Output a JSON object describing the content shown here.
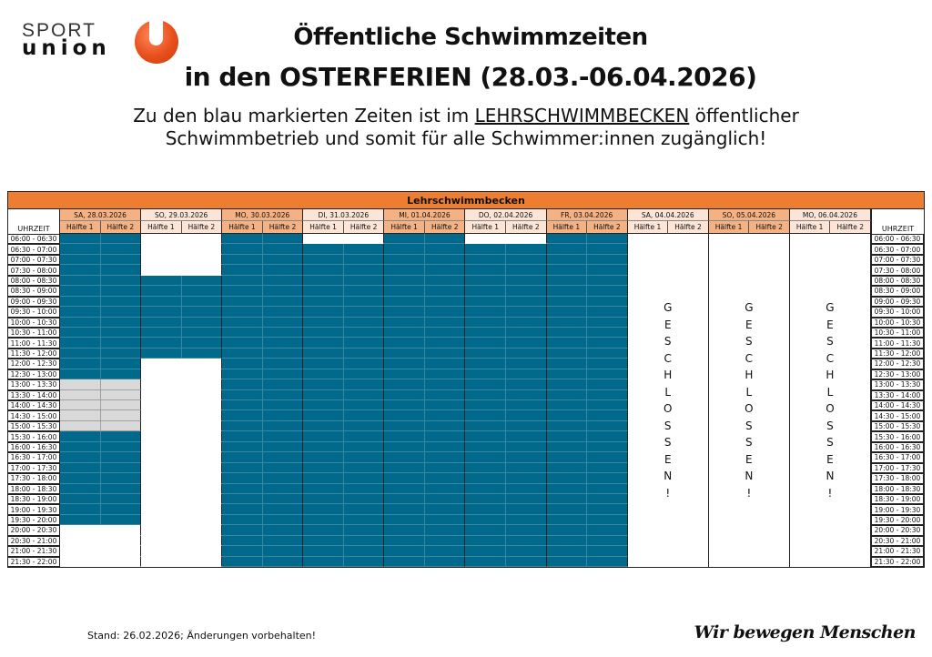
{
  "logo": {
    "line1": "SPORT",
    "line2": "union",
    "brand_color": "#e84e1b"
  },
  "title": {
    "line1": "Öffentliche Schwimmzeiten",
    "line2": "in den OSTERFERIEN (28.03.-06.04.2026)"
  },
  "subtitle": {
    "line1_before": "Zu den blau markierten Zeiten ist im ",
    "line1_underlined": "LEHRSCHWIMMBECKEN",
    "line1_after": " öffentlicher",
    "line2": "Schwimmbetrieb und somit für alle Schwimmer:innen zugänglich!"
  },
  "table": {
    "header": "Lehrschwimmbecken",
    "time_header": "UHRZEIT",
    "half_labels": [
      "Hälfte 1",
      "Hälfte 2"
    ],
    "closed_text": "GESCHLOSSEN!",
    "colors": {
      "open": "#00698c",
      "reserved": "#d9d9d9",
      "header": "#ed7d31",
      "day_dark": "#f4b183",
      "day_light": "#fce4d6"
    },
    "times": [
      "06:00 - 06:30",
      "06:30 - 07:00",
      "07:00 - 07:30",
      "07:30 - 08:00",
      "08:00 - 08:30",
      "08:30 - 09:00",
      "09:00 - 09:30",
      "09:30 - 10:00",
      "10:00 - 10:30",
      "10:30 - 11:00",
      "11:00 - 11:30",
      "11:30 - 12:00",
      "12:00 - 12:30",
      "12:30 - 13:00",
      "13:00 - 13:30",
      "13:30 - 14:00",
      "14:00 - 14:30",
      "14:30 - 15:00",
      "15:00 - 15:30",
      "15:30 - 16:00",
      "16:00 - 16:30",
      "16:30 - 17:00",
      "17:00 - 17:30",
      "17:30 - 18:00",
      "18:00 - 18:30",
      "18:30 - 19:00",
      "19:00 - 19:30",
      "19:30 - 20:00",
      "20:00 - 20:30",
      "20:30 - 21:00",
      "21:00 - 21:30",
      "21:30 - 22:00"
    ],
    "days": [
      {
        "label": "SA, 28.03.2026",
        "shade": "dark",
        "open": [
          [
            "06:00",
            "13:00"
          ],
          [
            "15:30",
            "20:00"
          ]
        ],
        "reserved": [
          [
            "13:00",
            "15:30"
          ]
        ]
      },
      {
        "label": "SO, 29.03.2026",
        "shade": "light",
        "open": [
          [
            "08:00",
            "12:00"
          ]
        ],
        "reserved": []
      },
      {
        "label": "MO, 30.03.2026",
        "shade": "dark",
        "open": [
          [
            "06:00",
            "22:00"
          ]
        ],
        "reserved": []
      },
      {
        "label": "DI, 31.03.2026",
        "shade": "light",
        "open": [
          [
            "06:30",
            "22:00"
          ]
        ],
        "reserved": []
      },
      {
        "label": "MI, 01.04.2026",
        "shade": "dark",
        "open": [
          [
            "06:00",
            "22:00"
          ]
        ],
        "reserved": []
      },
      {
        "label": "DO, 02.04.2026",
        "shade": "light",
        "open": [
          [
            "06:30",
            "22:00"
          ]
        ],
        "reserved": []
      },
      {
        "label": "FR, 03.04.2026",
        "shade": "dark",
        "open": [
          [
            "06:00",
            "22:00"
          ]
        ],
        "reserved": []
      },
      {
        "label": "SA, 04.04.2026",
        "shade": "light",
        "closed": true
      },
      {
        "label": "SO, 05.04.2026",
        "shade": "dark",
        "closed": true
      },
      {
        "label": "MO, 06.04.2026",
        "shade": "light",
        "closed": true
      }
    ]
  },
  "footer": {
    "note": "Stand: 26.02.2026; Änderungen vorbehalten!",
    "slogan": "Wir bewegen Menschen"
  }
}
